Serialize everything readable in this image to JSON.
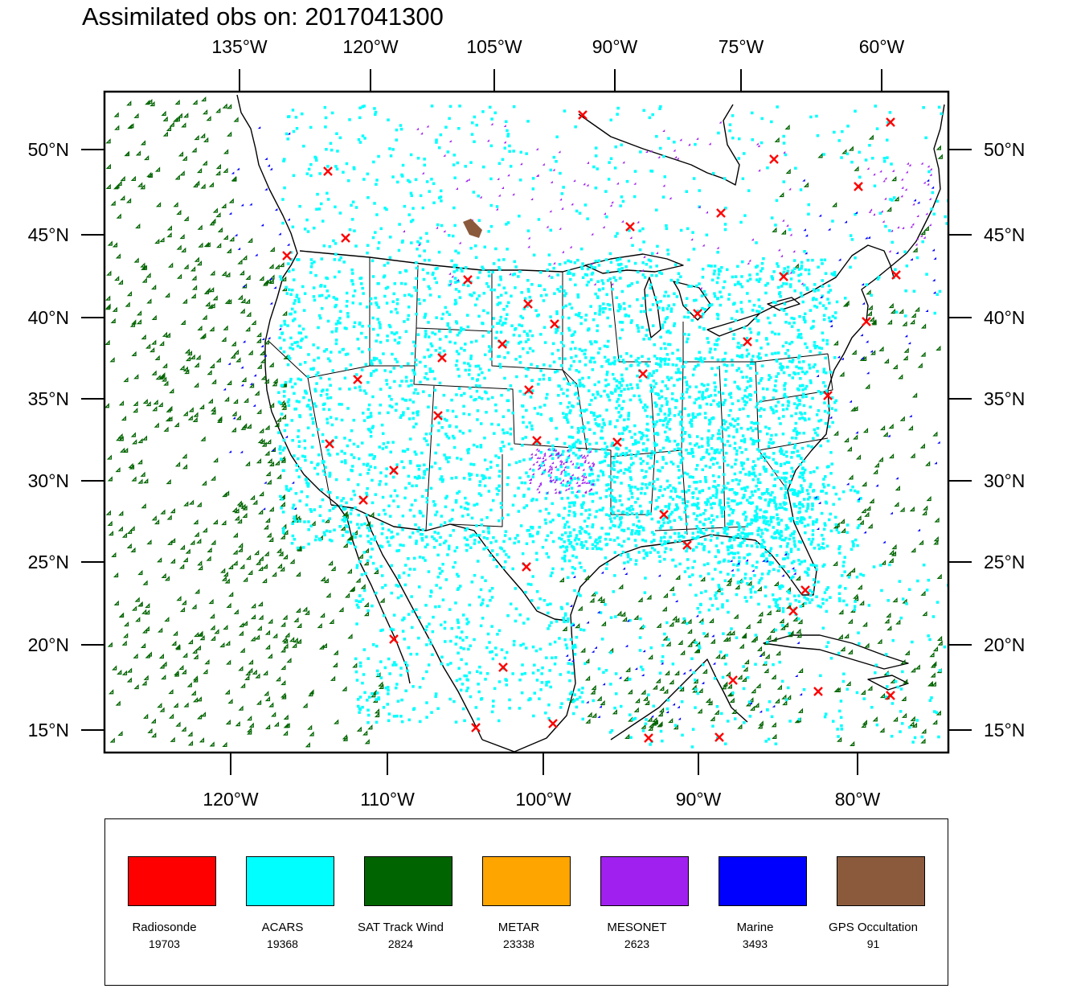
{
  "title": "Assimilated obs on: 2017041300",
  "top_axis_labels": [
    "135°W",
    "120°W",
    "105°W",
    "90°W",
    "75°W",
    "60°W"
  ],
  "bottom_axis_labels": [
    "120°W",
    "110°W",
    "100°W",
    "90°W",
    "80°W"
  ],
  "left_axis_labels": [
    "50°N",
    "45°N",
    "40°N",
    "35°N",
    "30°N",
    "25°N",
    "20°N",
    "15°N"
  ],
  "right_axis_labels": [
    "50°N",
    "45°N",
    "40°N",
    "35°N",
    "30°N",
    "25°N",
    "20°N",
    "15°N"
  ],
  "legend": [
    {
      "name": "Radiosonde",
      "count": "19703",
      "color": "#ff0000",
      "marker": "x-icon"
    },
    {
      "name": "ACARS",
      "count": "19368",
      "color": "#00ffff",
      "marker": "square-dot-icon"
    },
    {
      "name": "SAT Track Wind",
      "count": "2824",
      "color": "#006400",
      "marker": "open-triangle-icon"
    },
    {
      "name": "METAR",
      "count": "23338",
      "color": "#ffa500",
      "marker": "down-triangle-icon"
    },
    {
      "name": "MESONET",
      "count": "2623",
      "color": "#a020f0",
      "marker": "diamond-icon"
    },
    {
      "name": "Marine",
      "count": "3493",
      "color": "#0000ff",
      "marker": "left-triangle-icon"
    },
    {
      "name": "GPS Occultation",
      "count": "91",
      "color": "#8b5a3c",
      "marker": "blob-icon"
    }
  ]
}
